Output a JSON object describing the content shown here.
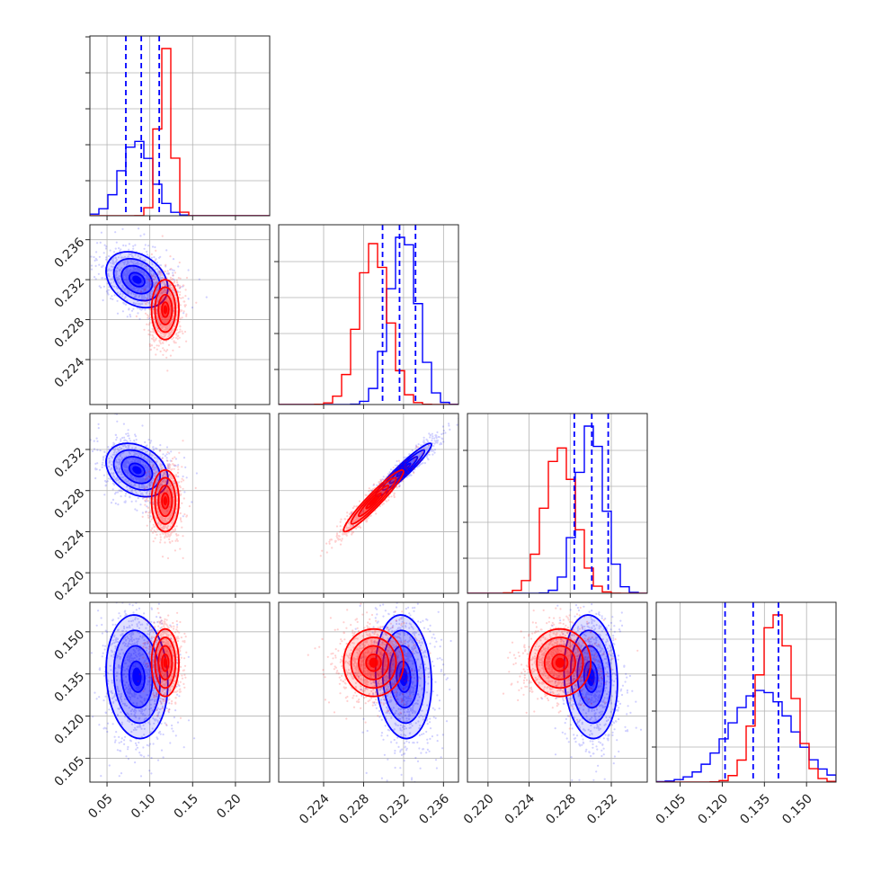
{
  "colors": {
    "blue": "#0000ff",
    "red": "#ff0000",
    "grid": "#b3b3b3",
    "frame": "#262626"
  },
  "chart_data": {
    "type": "corner",
    "parameters": [
      {
        "range": [
          0.03,
          0.24
        ],
        "ticks": [
          "0.05",
          "0.10",
          "0.15",
          "0.20"
        ],
        "tick_values": [
          0.05,
          0.1,
          0.15,
          0.2
        ]
      },
      {
        "range": [
          0.2195,
          0.2375
        ],
        "ticks": [
          "0.224",
          "0.228",
          "0.232",
          "0.236"
        ],
        "tick_values": [
          0.224,
          0.228,
          0.232,
          0.236
        ]
      },
      {
        "range": [
          0.218,
          0.2355
        ],
        "ticks": [
          "0.220",
          "0.224",
          "0.228",
          "0.232"
        ],
        "tick_values": [
          0.22,
          0.224,
          0.228,
          0.232
        ]
      },
      {
        "range": [
          0.0965,
          0.1605
        ],
        "ticks": [
          "0.105",
          "0.120",
          "0.135",
          "0.150"
        ],
        "tick_values": [
          0.105,
          0.12,
          0.135,
          0.15
        ]
      }
    ],
    "series": [
      {
        "color": "#0000ff",
        "means": [
          0.085,
          0.232,
          0.23,
          0.134
        ],
        "sigmas": [
          0.018,
          0.0014,
          0.0013,
          0.011
        ],
        "quantiles": [
          [
            0.072,
            0.09,
            0.111
          ],
          [
            0.2299,
            0.2316,
            0.2332
          ],
          [
            0.2284,
            0.2301,
            0.2317
          ],
          [
            0.121,
            0.131,
            0.14
          ]
        ],
        "correlations": [
          [
            1,
            -0.3,
            -0.3,
            -0.1
          ],
          [
            -0.3,
            1,
            0.95,
            -0.1
          ],
          [
            -0.3,
            0.95,
            1,
            -0.1
          ],
          [
            -0.1,
            -0.1,
            -0.1,
            1
          ]
        ]
      },
      {
        "color": "#ff0000",
        "means": [
          0.118,
          0.229,
          0.227,
          0.139
        ],
        "sigmas": [
          0.008,
          0.0015,
          0.0015,
          0.006
        ],
        "quantiles": [
          [
            0.11,
            0.118,
            0.126
          ],
          [
            0.2275,
            0.229,
            0.2305
          ],
          [
            0.2255,
            0.227,
            0.2285
          ],
          [
            0.132,
            0.139,
            0.146
          ]
        ],
        "correlations": [
          [
            1,
            0.0,
            0.0,
            0.0
          ],
          [
            0.0,
            1,
            0.95,
            0.0
          ],
          [
            0.0,
            0.95,
            1,
            0.0
          ],
          [
            0.0,
            0.0,
            0.0,
            1
          ]
        ]
      }
    ],
    "histogram_bins": 20,
    "contour_levels": [
      0.5,
      1.0,
      1.5,
      2.0
    ],
    "grid": true,
    "legend": "none",
    "title": "",
    "xlabel": "",
    "ylabel": ""
  }
}
